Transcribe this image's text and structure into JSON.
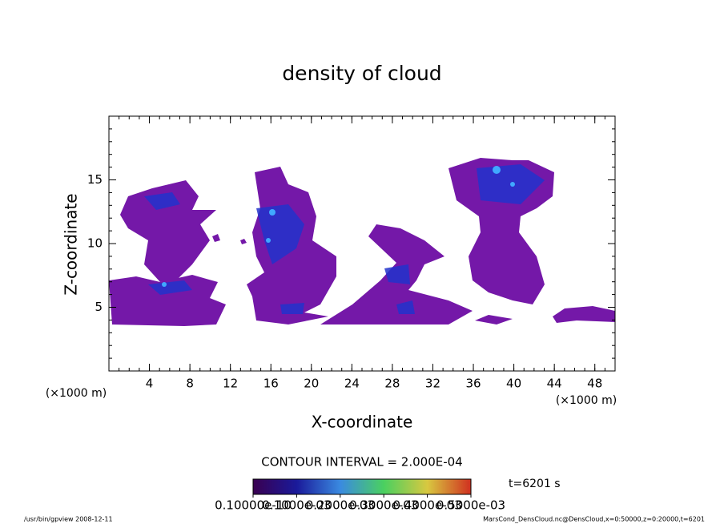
{
  "chart_data": {
    "type": "contour",
    "title": "density of cloud",
    "x_label": "X-coordinate",
    "y_label": "Z-coordinate",
    "x_unit": "(×1000 m)",
    "y_unit": "(×1000 m)",
    "xlim": [
      0,
      50
    ],
    "xticks": [
      4,
      8,
      12,
      16,
      20,
      24,
      28,
      32,
      36,
      40,
      44,
      48
    ],
    "ylim": [
      0,
      20
    ],
    "yticks": [
      5,
      10,
      15
    ],
    "contour_interval": "CONTOUR INTERVAL = 2.000E-04",
    "time_label": "t=6201 s",
    "colorbar_lim": [
      0,
      0.0005
    ],
    "colorbar_ticks": [
      {
        "value": 0,
        "label": "0.10000e-10"
      },
      {
        "value": 0.0001,
        "label": "0.1000e-03"
      },
      {
        "value": 0.0002,
        "label": "0.2000e-03"
      },
      {
        "value": 0.0003,
        "label": "0.3000e-03"
      },
      {
        "value": 0.0004,
        "label": "0.4000e-03"
      },
      {
        "value": 0.0005,
        "label": "0.5000e-03"
      }
    ],
    "footer_left": "/usr/bin/gpview   2008-12-11",
    "footer_right": "MarsCond_DensCloud.nc@DensCloud,x=0:50000,z=0:20000,t=6201"
  }
}
